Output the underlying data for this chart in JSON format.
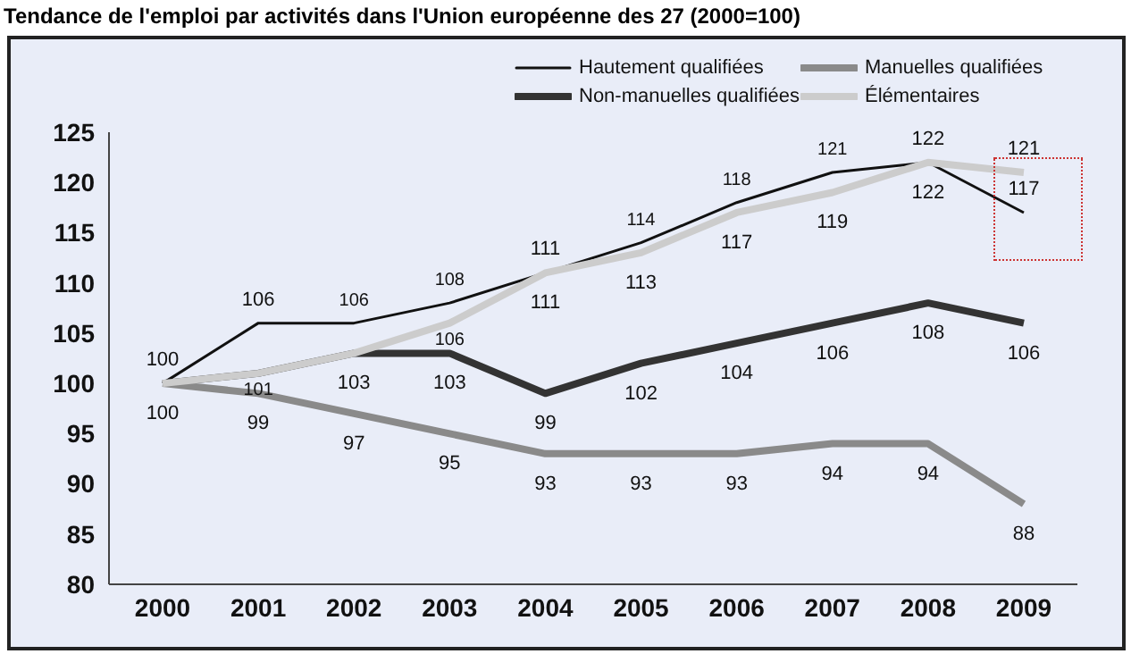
{
  "chart_data": {
    "type": "line",
    "title": "Tendance de l'emploi par activités dans l'Union européenne des 27 (2000=100)",
    "categories": [
      "2000",
      "2001",
      "2002",
      "2003",
      "2004",
      "2005",
      "2006",
      "2007",
      "2008",
      "2009"
    ],
    "series": [
      {
        "name": "Hautement qualifiées",
        "color": "#111111",
        "values": [
          100,
          106,
          106,
          108,
          111,
          114,
          118,
          121,
          122,
          117
        ],
        "value_labels": [
          "100",
          "106",
          "106",
          "108",
          "111",
          "114",
          "118",
          "121",
          "122",
          "117"
        ]
      },
      {
        "name": "Non-manuelles qualifiées",
        "color": "#333333",
        "values": [
          100,
          101,
          103,
          103,
          99,
          102,
          104,
          106,
          108,
          106
        ],
        "value_labels": [
          "100",
          "101",
          "103",
          "103",
          "99",
          "102",
          "104",
          "106",
          "108",
          "106"
        ]
      },
      {
        "name": "Manuelles qualifiées",
        "color": "#8a8a8a",
        "values": [
          100,
          99,
          97,
          95,
          93,
          93,
          93,
          94,
          94,
          88
        ],
        "value_labels": [
          null,
          "99",
          "97",
          "95",
          "93",
          "93",
          "93",
          "94",
          "94",
          "88"
        ]
      },
      {
        "name": "Élémentaires",
        "color": "#cccccc",
        "values": [
          100,
          101,
          103,
          106,
          111,
          113,
          117,
          119,
          122,
          121
        ],
        "value_labels": [
          null,
          null,
          null,
          "106",
          "111",
          "113",
          "117",
          "119",
          "122",
          "121"
        ]
      }
    ],
    "ylim": [
      80,
      125
    ],
    "yticks": [
      80,
      85,
      90,
      95,
      100,
      105,
      110,
      115,
      120,
      125
    ],
    "grid": false,
    "legend": "top right",
    "marker": "none",
    "line_style": "solid"
  }
}
